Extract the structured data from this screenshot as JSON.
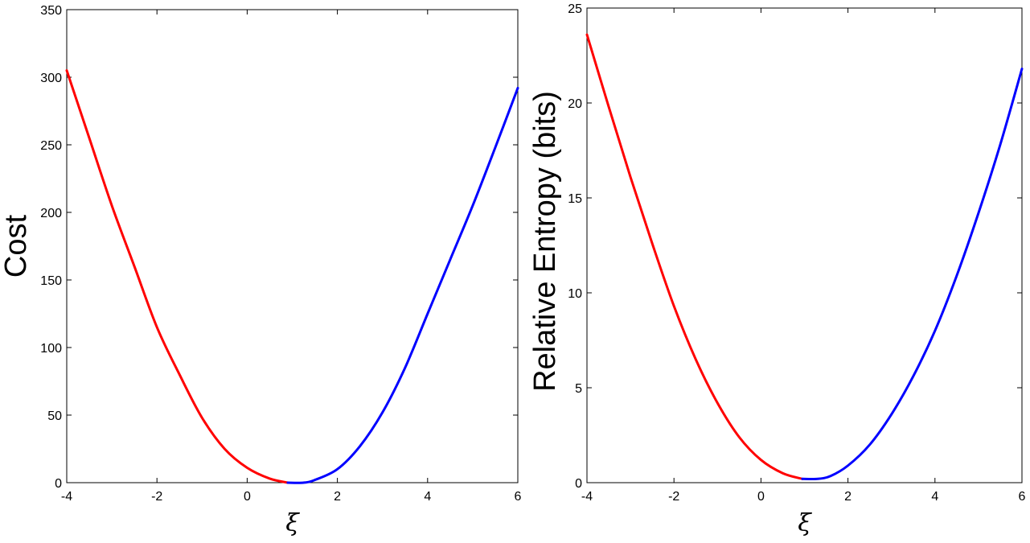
{
  "chart_data": [
    {
      "type": "line",
      "title": "",
      "xlabel": "ξ",
      "ylabel": "Cost",
      "xlim": [
        -4,
        6
      ],
      "ylim": [
        0,
        350
      ],
      "xticks": [
        "-4",
        "-2",
        "0",
        "2",
        "4",
        "6"
      ],
      "yticks": [
        "0",
        "50",
        "100",
        "150",
        "200",
        "250",
        "300",
        "350"
      ],
      "grid": false,
      "series": [
        {
          "color": "#ff0000",
          "x": [
            -4,
            -3.5,
            -3,
            -2.5,
            -2,
            -1.5,
            -1,
            -0.5,
            0,
            0.5,
            0.9
          ],
          "y": [
            305,
            255,
            205,
            160,
            115,
            80,
            48,
            25,
            11,
            3,
            0
          ]
        },
        {
          "color": "#0000ff",
          "x": [
            0.9,
            1.25,
            1.5,
            2,
            2.5,
            3,
            3.5,
            4,
            4.5,
            5,
            5.5,
            6
          ],
          "y": [
            0,
            0,
            2,
            10,
            27,
            52,
            85,
            125,
            165,
            205,
            248,
            292
          ]
        }
      ]
    },
    {
      "type": "line",
      "title": "",
      "xlabel": "ξ",
      "ylabel": "Relative Entropy (bits)",
      "xlim": [
        -4,
        6
      ],
      "ylim": [
        0,
        25
      ],
      "xticks": [
        "-4",
        "-2",
        "0",
        "2",
        "4",
        "6"
      ],
      "yticks": [
        "0",
        "5",
        "10",
        "15",
        "20",
        "25"
      ],
      "grid": false,
      "series": [
        {
          "color": "#ff0000",
          "x": [
            -4,
            -3.5,
            -3,
            -2.5,
            -2,
            -1.5,
            -1,
            -0.5,
            0,
            0.5,
            0.95
          ],
          "y": [
            23.6,
            19.8,
            16.1,
            12.6,
            9.3,
            6.5,
            4.2,
            2.4,
            1.2,
            0.5,
            0.2
          ]
        },
        {
          "color": "#0000ff",
          "x": [
            0.95,
            1.3,
            1.6,
            2,
            2.5,
            3,
            3.5,
            4,
            4.5,
            5,
            5.5,
            6
          ],
          "y": [
            0.2,
            0.2,
            0.35,
            0.9,
            2.0,
            3.6,
            5.6,
            8.0,
            10.9,
            14.2,
            17.8,
            21.8
          ]
        }
      ]
    }
  ]
}
